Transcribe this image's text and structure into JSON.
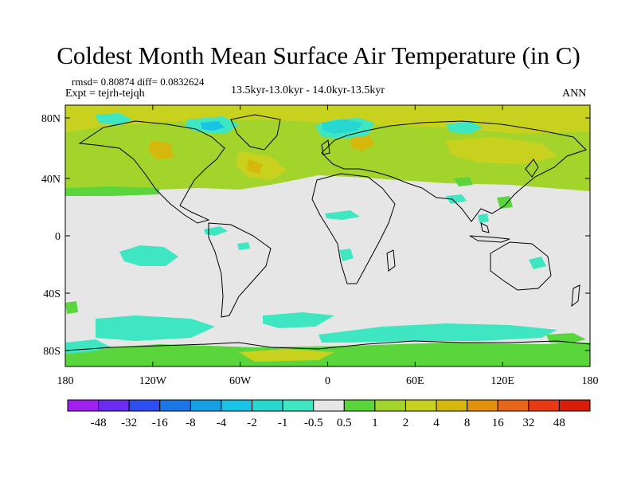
{
  "title": "Coldest Month Mean Surface Air Temperature (in C)",
  "stats": "rmsd= 0.80874  diff= 0.0832624",
  "experiment": "Expt = tejrh-tejqh",
  "period": "13.5kyr-13.0kyr - 14.0kyr-13.5kyr",
  "season": "ANN",
  "map": {
    "lat_ticks": [
      "80N",
      "40N",
      "0",
      "40S",
      "80S"
    ],
    "lon_ticks": [
      "180",
      "120W",
      "60W",
      "0",
      "60E",
      "120E",
      "180"
    ]
  },
  "colorbar": {
    "labels": [
      "-48",
      "-32",
      "-16",
      "-8",
      "-4",
      "-2",
      "-1",
      "-0.5",
      "0.5",
      "1",
      "2",
      "4",
      "8",
      "16",
      "32",
      "48"
    ],
    "colors": [
      "#a020f0",
      "#6a2cf0",
      "#2e4ef2",
      "#1a78e6",
      "#16a0e6",
      "#19c3e6",
      "#28d7d2",
      "#3ee6c2",
      "#e6e6e6",
      "#5ad63c",
      "#a2d42c",
      "#c8d21e",
      "#d6b80c",
      "#e2920c",
      "#e8661a",
      "#e63a14",
      "#d81e0a"
    ]
  },
  "map_colors": {
    "background": "#e6e6e6",
    "light_green": "#a2d42c",
    "yellow_green": "#c8d21e",
    "green": "#5ad63c",
    "cyan": "#3ee6c2",
    "teal": "#28d7d2",
    "blue": "#19c3e6",
    "orange": "#d6b80c",
    "coast": "#000000"
  }
}
